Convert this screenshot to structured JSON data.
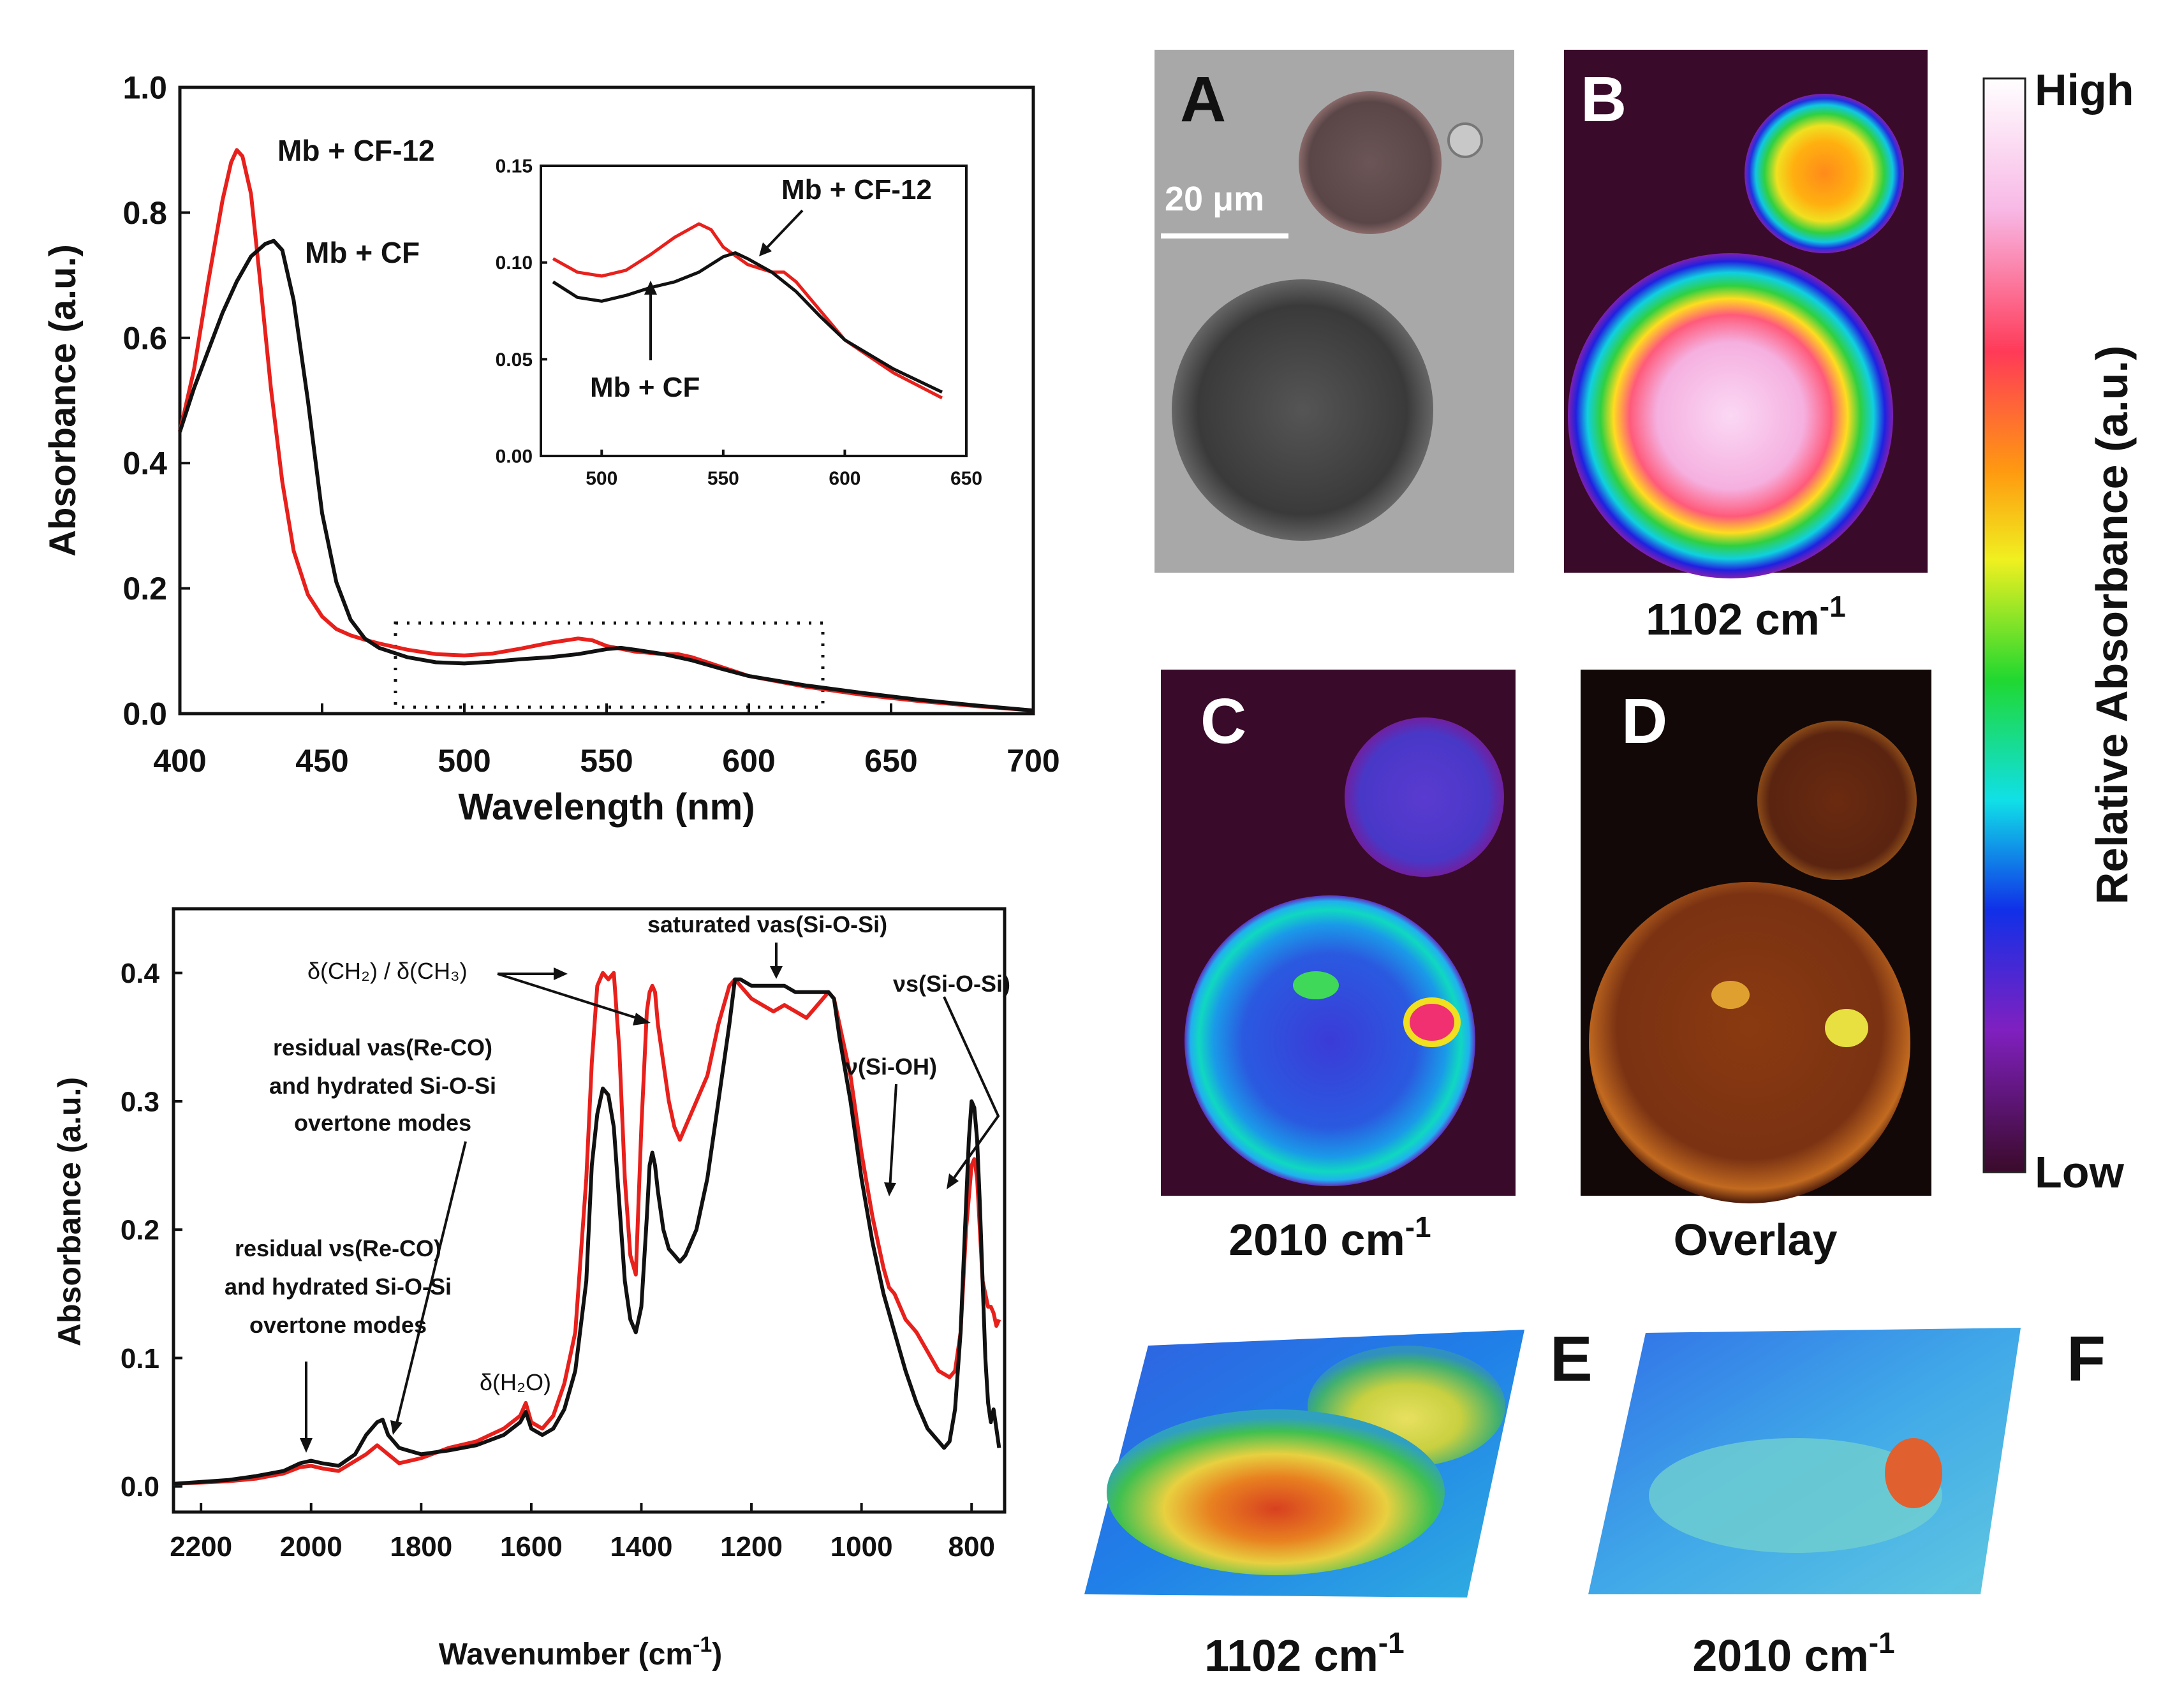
{
  "chart_data": [
    {
      "type": "line",
      "xlabel": "Wavelength (nm)",
      "ylabel": "Absorbance (a.u.)",
      "xlim": [
        400,
        700
      ],
      "ylim": [
        0,
        1.0
      ],
      "xticks": [
        "400",
        "450",
        "500",
        "550",
        "600",
        "650",
        "700"
      ],
      "yticks": [
        "0.0",
        "0.2",
        "0.4",
        "0.6",
        "0.8",
        "1.0"
      ],
      "series": [
        {
          "name": "Mb + CF-12",
          "color": "#e8201c",
          "x": [
            400,
            405,
            410,
            415,
            418,
            420,
            422,
            425,
            428,
            432,
            436,
            440,
            445,
            450,
            455,
            460,
            465,
            470,
            480,
            490,
            500,
            510,
            520,
            530,
            540,
            545,
            550,
            560,
            570,
            575,
            580,
            590,
            600,
            620,
            640,
            660,
            680,
            700
          ],
          "y": [
            0.45,
            0.55,
            0.69,
            0.82,
            0.88,
            0.9,
            0.89,
            0.83,
            0.7,
            0.52,
            0.37,
            0.26,
            0.19,
            0.155,
            0.135,
            0.125,
            0.118,
            0.112,
            0.102,
            0.095,
            0.093,
            0.096,
            0.104,
            0.113,
            0.12,
            0.117,
            0.108,
            0.099,
            0.095,
            0.095,
            0.09,
            0.075,
            0.06,
            0.043,
            0.03,
            0.02,
            0.012,
            0.005
          ]
        },
        {
          "name": "Mb + CF",
          "color": "#111111",
          "x": [
            400,
            405,
            410,
            415,
            420,
            425,
            430,
            433,
            436,
            440,
            445,
            450,
            455,
            460,
            465,
            470,
            480,
            490,
            500,
            510,
            520,
            530,
            540,
            550,
            555,
            560,
            570,
            580,
            590,
            600,
            620,
            640,
            660,
            680,
            700
          ],
          "y": [
            0.45,
            0.52,
            0.58,
            0.64,
            0.69,
            0.73,
            0.75,
            0.755,
            0.74,
            0.66,
            0.5,
            0.32,
            0.21,
            0.15,
            0.12,
            0.105,
            0.09,
            0.082,
            0.08,
            0.083,
            0.087,
            0.09,
            0.095,
            0.103,
            0.105,
            0.102,
            0.095,
            0.085,
            0.072,
            0.06,
            0.045,
            0.033,
            0.022,
            0.013,
            0.005
          ]
        }
      ],
      "annotations": [
        "Mb + CF-12",
        "Mb + CF"
      ],
      "inset": {
        "xlim": [
          475,
          650
        ],
        "ylim": [
          0,
          0.15
        ],
        "xticks": [
          "500",
          "550",
          "600",
          "650"
        ],
        "yticks": [
          "0.00",
          "0.05",
          "0.10",
          "0.15"
        ],
        "annotations": [
          "Mb + CF-12",
          "Mb + CF"
        ]
      }
    },
    {
      "type": "line",
      "xlabel": "Wavenumber (cm",
      "xlabel_sup": "-1",
      "xlabel_end": ")",
      "ylabel": "Absorbance (a.u.)",
      "xlim": [
        2250,
        740
      ],
      "ylim": [
        -0.02,
        0.45
      ],
      "xticks": [
        "2200",
        "2000",
        "1800",
        "1600",
        "1400",
        "1200",
        "1000",
        "800"
      ],
      "yticks": [
        "0.0",
        "0.1",
        "0.2",
        "0.3",
        "0.4"
      ],
      "series": [
        {
          "color": "#e8201c",
          "x": [
            2250,
            2150,
            2100,
            2050,
            2020,
            2000,
            1980,
            1950,
            1900,
            1880,
            1860,
            1840,
            1800,
            1750,
            1700,
            1650,
            1620,
            1610,
            1600,
            1580,
            1560,
            1540,
            1520,
            1500,
            1490,
            1480,
            1470,
            1460,
            1450,
            1440,
            1430,
            1420,
            1410,
            1400,
            1390,
            1385,
            1380,
            1375,
            1370,
            1360,
            1350,
            1340,
            1330,
            1320,
            1300,
            1280,
            1260,
            1240,
            1230,
            1220,
            1200,
            1180,
            1160,
            1140,
            1120,
            1100,
            1080,
            1060,
            1050,
            1040,
            1020,
            1000,
            980,
            960,
            950,
            940,
            920,
            900,
            880,
            860,
            840,
            830,
            820,
            810,
            800,
            795,
            790,
            785,
            780,
            775,
            770,
            765,
            760,
            755,
            750
          ],
          "y": [
            0.002,
            0.004,
            0.006,
            0.01,
            0.015,
            0.016,
            0.014,
            0.012,
            0.025,
            0.032,
            0.025,
            0.018,
            0.022,
            0.03,
            0.035,
            0.045,
            0.055,
            0.065,
            0.05,
            0.045,
            0.055,
            0.08,
            0.12,
            0.24,
            0.33,
            0.39,
            0.4,
            0.395,
            0.4,
            0.34,
            0.24,
            0.18,
            0.165,
            0.28,
            0.37,
            0.385,
            0.39,
            0.385,
            0.36,
            0.33,
            0.3,
            0.28,
            0.27,
            0.28,
            0.3,
            0.32,
            0.36,
            0.39,
            0.395,
            0.39,
            0.38,
            0.375,
            0.37,
            0.375,
            0.37,
            0.365,
            0.375,
            0.385,
            0.38,
            0.36,
            0.32,
            0.26,
            0.21,
            0.17,
            0.155,
            0.15,
            0.13,
            0.12,
            0.105,
            0.09,
            0.085,
            0.09,
            0.12,
            0.2,
            0.25,
            0.255,
            0.24,
            0.2,
            0.16,
            0.15,
            0.14,
            0.14,
            0.135,
            0.125,
            0.13
          ]
        },
        {
          "color": "#111111",
          "x": [
            2250,
            2150,
            2100,
            2050,
            2020,
            2000,
            1980,
            1950,
            1920,
            1900,
            1880,
            1870,
            1860,
            1840,
            1800,
            1750,
            1700,
            1650,
            1620,
            1610,
            1600,
            1580,
            1560,
            1540,
            1520,
            1500,
            1490,
            1480,
            1470,
            1460,
            1450,
            1440,
            1430,
            1420,
            1410,
            1400,
            1390,
            1385,
            1380,
            1375,
            1370,
            1360,
            1350,
            1340,
            1330,
            1320,
            1300,
            1280,
            1260,
            1240,
            1230,
            1220,
            1200,
            1180,
            1160,
            1140,
            1120,
            1100,
            1080,
            1060,
            1050,
            1040,
            1020,
            1000,
            980,
            960,
            940,
            920,
            900,
            880,
            860,
            850,
            840,
            830,
            820,
            810,
            805,
            800,
            795,
            790,
            785,
            780,
            775,
            770,
            765,
            760,
            755,
            750
          ],
          "y": [
            0.002,
            0.005,
            0.008,
            0.012,
            0.018,
            0.02,
            0.018,
            0.016,
            0.025,
            0.04,
            0.05,
            0.052,
            0.04,
            0.03,
            0.025,
            0.028,
            0.032,
            0.04,
            0.05,
            0.058,
            0.045,
            0.04,
            0.045,
            0.06,
            0.09,
            0.16,
            0.25,
            0.29,
            0.31,
            0.305,
            0.28,
            0.22,
            0.16,
            0.13,
            0.12,
            0.14,
            0.21,
            0.25,
            0.26,
            0.25,
            0.23,
            0.2,
            0.185,
            0.18,
            0.175,
            0.18,
            0.2,
            0.24,
            0.3,
            0.36,
            0.395,
            0.395,
            0.39,
            0.39,
            0.39,
            0.39,
            0.385,
            0.385,
            0.385,
            0.385,
            0.38,
            0.35,
            0.3,
            0.24,
            0.19,
            0.15,
            0.12,
            0.09,
            0.065,
            0.045,
            0.035,
            0.03,
            0.035,
            0.06,
            0.12,
            0.22,
            0.27,
            0.3,
            0.295,
            0.27,
            0.22,
            0.16,
            0.1,
            0.065,
            0.05,
            0.06,
            0.045,
            0.03
          ]
        }
      ],
      "annotations": {
        "delta_ch": "δ(CH₂) / δ(CH₃)",
        "sat": "saturated νas(Si-O-Si)",
        "nus": "νs(Si-O-Si)",
        "nusioh": "ν(Si-OH)",
        "res_as_1": "residual νas(Re-CO)",
        "res_as_2": "and hydrated Si-O-Si",
        "res_as_3": "overtone modes",
        "res_s_1": "residual νs(Re-CO)",
        "res_s_2": "and hydrated Si-O-Si",
        "res_s_3": "overtone modes",
        "h2o": "δ(H₂O)"
      }
    }
  ],
  "images": {
    "panel_a_label": "A",
    "panel_b_label": "B",
    "panel_c_label": "C",
    "panel_d_label": "D",
    "panel_e_label": "E",
    "panel_f_label": "F",
    "scale_bar": "20 μm",
    "caption_b": "1102 cm",
    "caption_c": "2010 cm",
    "caption_d": "Overlay",
    "caption_e": "1102 cm",
    "caption_f": "2010 cm",
    "caption_sup": "-1",
    "colorbar_high": "High",
    "colorbar_low": "Low",
    "colorbar_label": "Relative Absorbance (a.u.)"
  }
}
